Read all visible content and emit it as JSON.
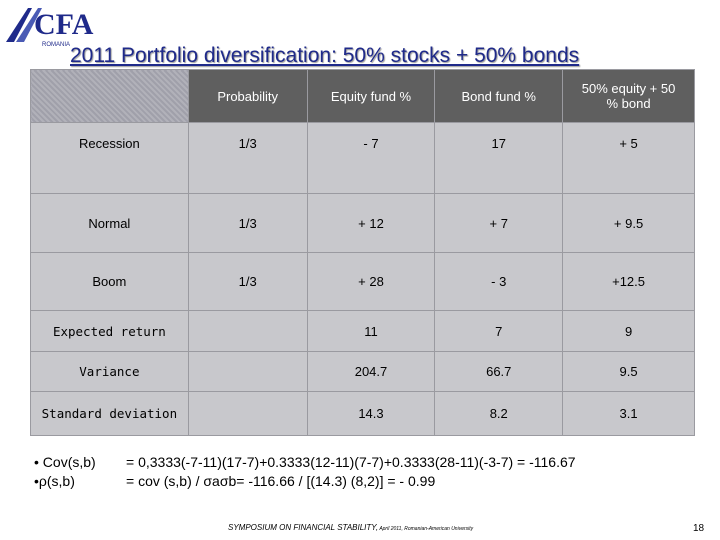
{
  "logo": {
    "text": "CFA",
    "subtext": "ROMANIA"
  },
  "title": "2011 Portfolio diversification: 50% stocks + 50% bonds",
  "table": {
    "headers": [
      "",
      "Probability",
      "Equity fund %",
      "Bond fund %",
      "50% equity + 50 % bond"
    ],
    "rows": [
      {
        "label": "Recession",
        "probability": "1/3",
        "equity": "- 7",
        "bond": "17",
        "mix": "+ 5"
      },
      {
        "label": "Normal",
        "probability": "1/3",
        "equity": "+ 12",
        "bond": "+ 7",
        "mix": "+ 9.5"
      },
      {
        "label": "Boom",
        "probability": "1/3",
        "equity": "+ 28",
        "bond": "- 3",
        "mix": "+12.5"
      },
      {
        "label": "Expected return",
        "probability": "",
        "equity": "11",
        "bond": "7",
        "mix": "9"
      },
      {
        "label": "Variance",
        "probability": "",
        "equity": "204.7",
        "bond": "66.7",
        "mix": "9.5"
      },
      {
        "label": "Standard deviation",
        "probability": "",
        "equity": "14.3",
        "bond": "8.2",
        "mix": "3.1"
      }
    ]
  },
  "formulas": {
    "labels": [
      "• Cov(s,b)",
      "•ρ(s,b)"
    ],
    "lines": [
      "= 0,3333(-7-11)(17-7)+0.3333(12-11)(7-7)+0.3333(28-11)(-3-7) = -116.67",
      "=  cov (s,b)  / σaσb= -116.66 / [(14.3) (8,2)] = - 0.99"
    ]
  },
  "footer": {
    "main": "SYMPOSIUM ON FINANCIAL STABILITY,",
    "small": " April 2011, Romanian-American University"
  },
  "page_number": "18",
  "colors": {
    "title": "#1f2a8a",
    "header_bg": "#5f5f5f",
    "cell_bg": "#c8c8cc",
    "logo": "#1f2a8a"
  }
}
